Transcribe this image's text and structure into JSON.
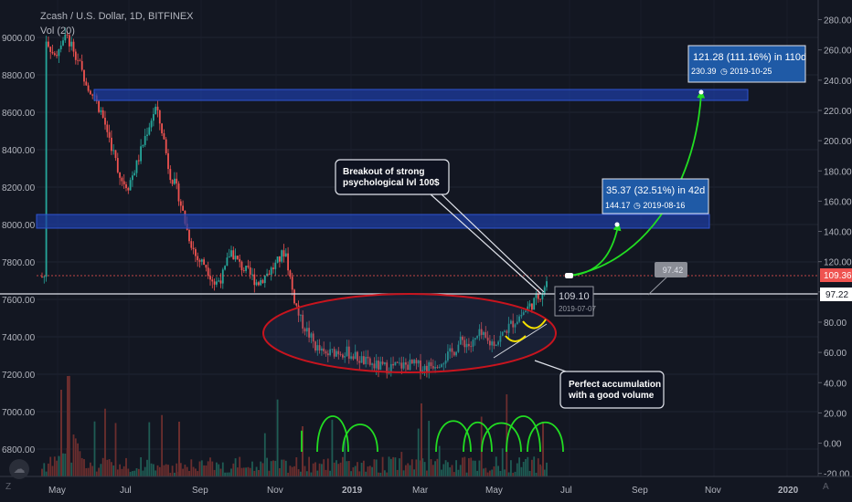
{
  "header": {
    "symbol": "Zcash / U.S. Dollar, 1D, BITFINEX",
    "indicator": "Vol (20)"
  },
  "footer": {
    "left_label": "Z",
    "right_label": "A",
    "logo_glyph": "☁"
  },
  "chart_data": {
    "type": "candlestick",
    "title": "Zcash / U.S. Dollar, 1D, BITFINEX",
    "left_axis": {
      "ticks": [
        6800,
        7000,
        7200,
        7400,
        7600,
        7800,
        8000,
        8200,
        8400,
        8600,
        8800,
        9000
      ]
    },
    "right_axis": {
      "ticks": [
        -20,
        0,
        20,
        40,
        60,
        80,
        100,
        120,
        140,
        160,
        180,
        200,
        220,
        240,
        260,
        280
      ],
      "tick_labels": [
        "-20.00",
        "0.00",
        "20.00",
        "40.00",
        "60.00",
        "80.00",
        "100.00",
        "120.00",
        "140.00",
        "160.00",
        "180.00",
        "200.00",
        "220.00",
        "240.00",
        "260.00",
        "280.00"
      ],
      "ylim": [
        -22,
        293
      ]
    },
    "x_axis": {
      "labels": [
        "May",
        "Jul",
        "Sep",
        "Nov",
        "2019",
        "Mar",
        "May",
        "Jul",
        "Sep",
        "Nov",
        "2020"
      ]
    },
    "price_markers": [
      {
        "value": 109.36,
        "label": "109.36",
        "style": "last-price"
      },
      {
        "value": 97.22,
        "label": "97.22",
        "style": "horizontal-line"
      }
    ],
    "zones": [
      {
        "name": "resistance-zone-upper",
        "from": 225,
        "to": 231
      },
      {
        "name": "resistance-zone-middle",
        "from": 136,
        "to": 145
      }
    ],
    "targets": [
      {
        "change": "121.28 (111.16%) in 110d",
        "price": "230.39",
        "date": "2019-10-25"
      },
      {
        "change": "35.37 (32.51%) in 42d",
        "price": "144.17",
        "date": "2019-08-16"
      }
    ],
    "annotations": {
      "breakout": "Breakout of strong psychological lvl 100$",
      "breakout_lines": [
        "Breakout of strong",
        "psychological lvl 100$"
      ],
      "accumulation_lines": [
        "Perfect accumulation",
        "with a good volume"
      ],
      "current_price_tag": "109.10",
      "current_date_tag": "2019-07-07",
      "grey_tag": "97.42"
    },
    "colors": {
      "up": "#26a69a",
      "down": "#ef5350",
      "zone": "#1e3fa8",
      "ellipse": "#c8141e",
      "arrow": "#22dd22",
      "background": "#131722"
    }
  }
}
